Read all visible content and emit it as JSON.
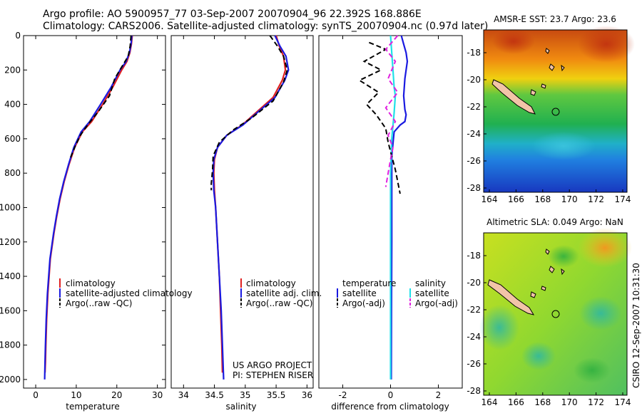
{
  "header": {
    "line1": "Argo profile: AO 5900957_77 03-Sep-2007 20070904_96 22.392S 168.886E",
    "line2": "Climatology: CARS2006. Satellite-adjusted climatology: synTS_20070904.nc (0.97d later)"
  },
  "colors": {
    "climatology": "#e02020",
    "satellite": "#1a1ae0",
    "argo": "#000000",
    "sal_satellite": "#20e0e8",
    "sal_argo": "#e020e0",
    "island": "#f2c4a8"
  },
  "chart_data": [
    {
      "type": "line",
      "id": "temperature",
      "xlabel": "temperature",
      "ylabel": "",
      "xlim": [
        -3,
        32
      ],
      "ylim": [
        2050,
        0
      ],
      "xticks": [
        0,
        10,
        20,
        30
      ],
      "yticks": [
        0,
        200,
        400,
        600,
        800,
        1000,
        1200,
        1400,
        1600,
        1800,
        2000
      ],
      "legend": [
        "climatology",
        "satellite-adjusted climatology",
        "Argo(..raw -QC)"
      ],
      "series": [
        {
          "name": "climatology",
          "color": "red",
          "style": "solid",
          "x": [
            23.8,
            23.6,
            23.2,
            22.5,
            21.2,
            19.0,
            16.5,
            13.8,
            11.5,
            9.6,
            8.2,
            7.0,
            6.0,
            5.2,
            4.5,
            3.6,
            3.0,
            2.7,
            2.5,
            2.4,
            2.3
          ],
          "y": [
            0,
            50,
            100,
            150,
            200,
            300,
            400,
            500,
            560,
            650,
            750,
            850,
            950,
            1050,
            1150,
            1300,
            1500,
            1650,
            1800,
            1900,
            1960
          ]
        },
        {
          "name": "satellite-adjusted climatology",
          "color": "blue",
          "style": "solid",
          "x": [
            23.7,
            23.5,
            23.1,
            22.3,
            20.8,
            18.6,
            16.0,
            13.3,
            11.2,
            9.4,
            8.1,
            6.9,
            5.9,
            5.1,
            4.4,
            3.5,
            2.9,
            2.6,
            2.4,
            2.3,
            2.2
          ],
          "y": [
            0,
            50,
            100,
            150,
            200,
            300,
            400,
            500,
            560,
            650,
            750,
            850,
            950,
            1050,
            1150,
            1300,
            1500,
            1650,
            1800,
            1900,
            2000
          ]
        },
        {
          "name": "Argo(..raw -QC)",
          "color": "black",
          "style": "dashed",
          "x": [
            23.5,
            23.3,
            22.8,
            21.0,
            19.5,
            18.2,
            15.5,
            12.8,
            11.0,
            9.8,
            8.4
          ],
          "y": [
            0,
            60,
            120,
            190,
            250,
            350,
            440,
            520,
            580,
            640,
            720
          ]
        }
      ]
    },
    {
      "type": "line",
      "id": "salinity",
      "xlabel": "salinity",
      "ylabel": "",
      "xlim": [
        33.8,
        36.1
      ],
      "ylim": [
        2050,
        0
      ],
      "xticks": [
        34,
        34.5,
        35,
        35.5,
        36
      ],
      "yticks": [],
      "legend": [
        "climatology",
        "satellite adj. clim.",
        "Argo(..raw -QC)"
      ],
      "series": [
        {
          "name": "climatology",
          "color": "red",
          "style": "solid",
          "x": [
            35.5,
            35.55,
            35.62,
            35.65,
            35.6,
            35.45,
            35.2,
            34.95,
            34.7,
            34.55,
            34.5,
            34.49,
            34.5,
            34.52,
            34.55,
            34.58,
            34.6,
            34.62,
            34.63
          ],
          "y": [
            0,
            60,
            120,
            200,
            260,
            360,
            440,
            520,
            580,
            650,
            720,
            800,
            900,
            1000,
            1200,
            1400,
            1600,
            1800,
            1960
          ]
        },
        {
          "name": "satellite adj. clim.",
          "color": "blue",
          "style": "solid",
          "x": [
            35.48,
            35.56,
            35.66,
            35.7,
            35.64,
            35.48,
            35.22,
            34.96,
            34.7,
            34.55,
            34.49,
            34.48,
            34.49,
            34.52,
            34.55,
            34.58,
            34.61,
            34.63,
            34.65
          ],
          "y": [
            0,
            60,
            120,
            200,
            260,
            360,
            440,
            520,
            580,
            650,
            720,
            800,
            900,
            1000,
            1200,
            1400,
            1600,
            1800,
            2000
          ]
        },
        {
          "name": "Argo(..raw -QC)",
          "color": "black",
          "style": "dashed",
          "x": [
            35.4,
            35.52,
            35.62,
            35.68,
            35.62,
            35.45,
            35.1,
            34.8,
            34.58,
            34.48,
            34.47,
            34.45,
            34.45
          ],
          "y": [
            0,
            60,
            120,
            200,
            270,
            380,
            480,
            550,
            620,
            700,
            780,
            860,
            900
          ]
        }
      ]
    },
    {
      "type": "line",
      "id": "difference",
      "xlabel": "difference from climatology",
      "ylabel": "",
      "xlim": [
        -3,
        3
      ],
      "ylim": [
        2050,
        0
      ],
      "xticks": [
        -2,
        0,
        2
      ],
      "yticks": [],
      "legend_groups": [
        {
          "title": "temperature",
          "items": [
            "satellite",
            "Argo(-adj)"
          ]
        },
        {
          "title": "salinity",
          "items": [
            "satellite",
            "Argo(-adj)"
          ]
        }
      ],
      "series": [
        {
          "name": "temperature satellite",
          "color": "blue",
          "style": "solid",
          "x": [
            0.45,
            0.55,
            0.65,
            0.7,
            0.6,
            0.55,
            0.6,
            0.65,
            0.6,
            0.4,
            0.15,
            0.05,
            0.05,
            0.05,
            0.04,
            0.03
          ],
          "y": [
            0,
            50,
            100,
            150,
            250,
            350,
            430,
            460,
            500,
            520,
            560,
            700,
            900,
            1200,
            1600,
            2000
          ]
        },
        {
          "name": "salinity satellite",
          "color": "cyan",
          "style": "solid",
          "x": [
            0.0,
            0.05,
            0.1,
            0.15,
            0.2,
            0.15,
            0.05,
            0.0,
            0.0,
            0.0
          ],
          "y": [
            0,
            100,
            200,
            300,
            350,
            450,
            600,
            800,
            1200,
            2000
          ]
        },
        {
          "name": "temperature Argo(-adj)",
          "color": "black",
          "style": "dashed",
          "x": [
            -0.9,
            -0.2,
            -1.1,
            -0.4,
            -1.3,
            -0.5,
            -1.0,
            -0.6,
            -0.2,
            -0.1,
            0.2,
            0.4
          ],
          "y": [
            40,
            80,
            150,
            200,
            260,
            330,
            400,
            460,
            540,
            620,
            780,
            920
          ]
        },
        {
          "name": "salinity Argo(-adj)",
          "color": "magenta",
          "style": "dashed",
          "x": [
            0.3,
            -0.2,
            0.2,
            -0.1,
            0.3,
            -0.2,
            0.2,
            -0.1,
            0.1,
            0.0,
            -0.1,
            -0.2
          ],
          "y": [
            0,
            80,
            150,
            250,
            330,
            420,
            500,
            580,
            650,
            720,
            800,
            880
          ]
        }
      ]
    }
  ],
  "maps": [
    {
      "id": "sst",
      "title": "AMSR-E SST: 23.7 Argo: 23.6",
      "xticks": [
        "164",
        "166",
        "168",
        "170",
        "172",
        "174"
      ],
      "yticks": [
        "-18",
        "-20",
        "-22",
        "-24",
        "-26",
        "-28"
      ]
    },
    {
      "id": "sla",
      "title": "Altimetric SLA: 0.049 Argo: NaN",
      "xticks": [
        "164",
        "166",
        "168",
        "170",
        "172",
        "174"
      ],
      "yticks": [
        "-18",
        "-20",
        "-22",
        "-24",
        "-26",
        "-28"
      ]
    }
  ],
  "credits": {
    "project": "US ARGO PROJECT",
    "pi": "PI: STEPHEN RISER",
    "stamp": "CSIRO 12-Sep-2007 10:31:30"
  }
}
